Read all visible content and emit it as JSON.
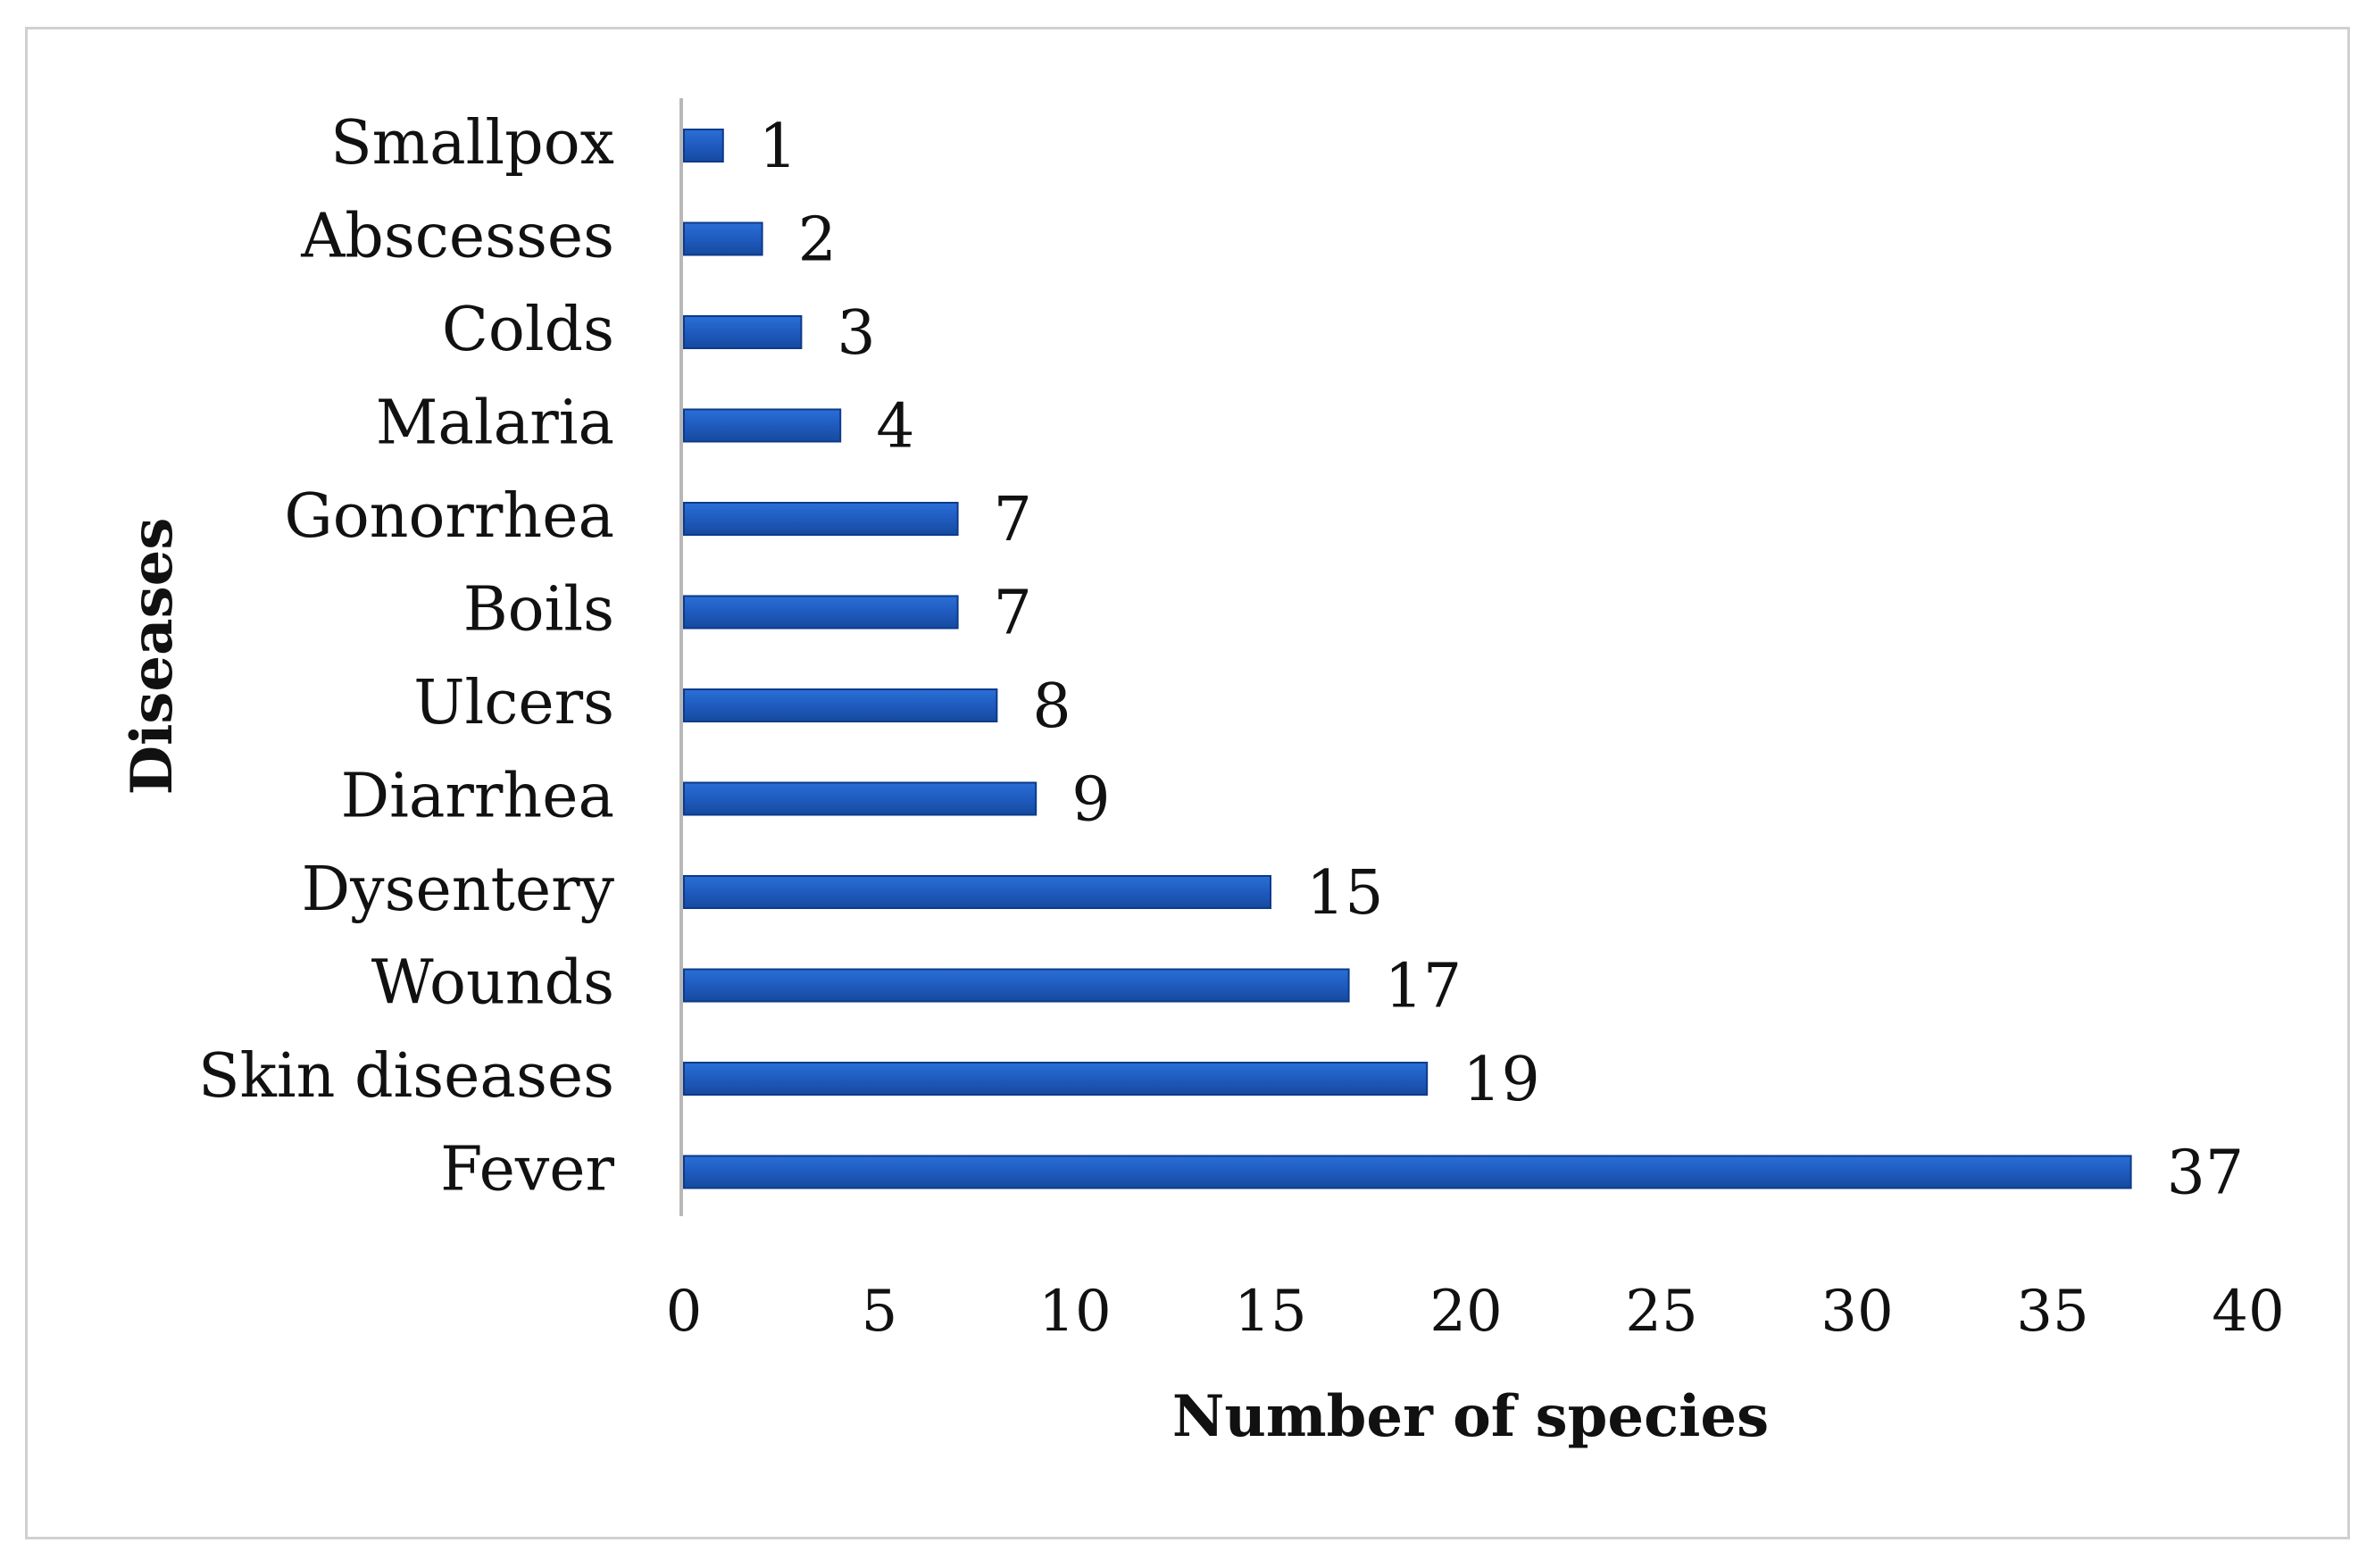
{
  "chart_data": {
    "type": "bar",
    "orientation": "horizontal",
    "title": "",
    "xlabel": "Number of species",
    "ylabel": "Diseases",
    "categories": [
      "Smallpox",
      "Abscesses",
      "Colds",
      "Malaria",
      "Gonorrhea",
      "Boils",
      "Ulcers",
      "Diarrhea",
      "Dysentery",
      "Wounds",
      "Skin diseases",
      "Fever"
    ],
    "values": [
      1,
      2,
      3,
      4,
      7,
      7,
      8,
      9,
      15,
      17,
      19,
      37
    ],
    "xlim": [
      0,
      40
    ],
    "xticks": [
      "0",
      "5",
      "10",
      "15",
      "20",
      "25",
      "30",
      "35",
      "40"
    ],
    "grid": false,
    "legend": "none",
    "data_labels": true
  },
  "colors": {
    "bar_fill": "#1f5bbf",
    "bar_edge": "#0d3a8a",
    "axis_line": "#b8b8b8",
    "text": "#111111"
  }
}
